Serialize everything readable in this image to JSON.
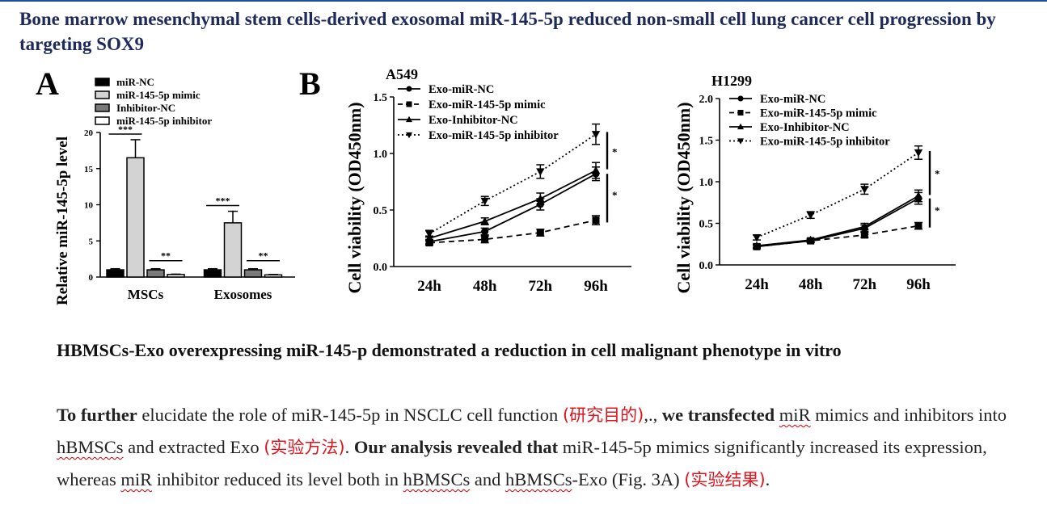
{
  "page": {
    "title": "Bone marrow mesenchymal stem cells-derived exosomal miR-145-5p reduced non-small cell lung cancer cell progression by targeting SOX9",
    "panel_a_letter": "A",
    "panel_b_letter": "B",
    "heading": "HBMSCs-Exo overexpressing miR-145-p demonstrated a reduction in cell malignant phenotype in vitro"
  },
  "paragraph": {
    "s1": "To further",
    "s2": " elucidate the role of miR-145-5p in NSCLC cell function ",
    "s3": "(研究目的)",
    "s4": ",., ",
    "s5": "we transfected",
    "s6": " ",
    "s7": "miR",
    "s8": " mimics and inhibitors into ",
    "s9": "hBMSCs",
    "s10": " and extracted Exo ",
    "s11": "(实验方法)",
    "s12": ". ",
    "s13": "Our analysis revealed that",
    "s14": " miR-145-5p mimics significantly increased its expression, whereas ",
    "s15": "miR",
    "s16": " inhibitor reduced its level both in ",
    "s17": "hBMSCs",
    "s18": " and ",
    "s19": "hBMSCs",
    "s20": "-Exo (Fig. 3A) ",
    "s21": "(实验结果)",
    "s22": "."
  },
  "chart_data": [
    {
      "type": "bar",
      "ylabel": "Relative miR-145-5p level",
      "ylim": [
        0,
        20
      ],
      "yticks": [
        "0",
        "5",
        "10",
        "15",
        "20"
      ],
      "categories": [
        "MSCs",
        "Exosomes"
      ],
      "series": [
        {
          "name": "miR-NC",
          "values": [
            1.0,
            1.0
          ],
          "errors": [
            0.15,
            0.15
          ],
          "fill": "#000000"
        },
        {
          "name": "miR-145-5p mimic",
          "values": [
            16.5,
            7.5
          ],
          "errors": [
            2.5,
            1.6
          ],
          "fill": "#d3d3d3"
        },
        {
          "name": "Inhibitor-NC",
          "values": [
            1.0,
            1.0
          ],
          "errors": [
            0.15,
            0.15
          ],
          "fill": "#7a7a7a"
        },
        {
          "name": "miR-145-5p inhibitor",
          "values": [
            0.35,
            0.3
          ],
          "errors": [
            0.05,
            0.05
          ],
          "fill": "#ffffff"
        }
      ],
      "annotations": [
        "***",
        "**",
        "***",
        "**"
      ],
      "legend": "top"
    },
    {
      "type": "line",
      "title": "A549",
      "ylabel": "Cell viability (OD450nm)",
      "ylim": [
        0,
        1.5
      ],
      "yticks": [
        "0.0",
        "0.5",
        "1.0",
        "1.5"
      ],
      "categories": [
        "24h",
        "48h",
        "72h",
        "96h"
      ],
      "series": [
        {
          "name": "Exo-miR-NC",
          "values": [
            0.22,
            0.31,
            0.55,
            0.82
          ],
          "errors": [
            0.02,
            0.03,
            0.05,
            0.06
          ],
          "marker": "circle",
          "dash": "solid"
        },
        {
          "name": "Exo-miR-145-5p mimic",
          "values": [
            0.21,
            0.24,
            0.3,
            0.41
          ],
          "errors": [
            0.02,
            0.03,
            0.03,
            0.04
          ],
          "marker": "square",
          "dash": "dashed"
        },
        {
          "name": "Exo-Inhibitor-NC",
          "values": [
            0.25,
            0.4,
            0.6,
            0.85
          ],
          "errors": [
            0.02,
            0.03,
            0.05,
            0.07
          ],
          "marker": "triangle",
          "dash": "solid"
        },
        {
          "name": "Exo-miR-145-5p inhibitor",
          "values": [
            0.29,
            0.58,
            0.84,
            1.17
          ],
          "errors": [
            0.03,
            0.04,
            0.06,
            0.09
          ],
          "marker": "triangle-down",
          "dash": "dotted"
        }
      ],
      "annotations": [
        "*",
        "*"
      ]
    },
    {
      "type": "line",
      "title": "H1299",
      "ylabel": "Cell viability (OD450nm)",
      "ylim": [
        0,
        2.0
      ],
      "yticks": [
        "0.0",
        "0.5",
        "1.0",
        "1.5",
        "2.0"
      ],
      "categories": [
        "24h",
        "48h",
        "72h",
        "96h"
      ],
      "series": [
        {
          "name": "Exo-miR-NC",
          "values": [
            0.22,
            0.29,
            0.44,
            0.8
          ],
          "errors": [
            0.02,
            0.02,
            0.04,
            0.07
          ],
          "marker": "circle",
          "dash": "solid"
        },
        {
          "name": "Exo-miR-145-5p mimic",
          "values": [
            0.22,
            0.29,
            0.36,
            0.47
          ],
          "errors": [
            0.02,
            0.02,
            0.03,
            0.04
          ],
          "marker": "square",
          "dash": "dashed"
        },
        {
          "name": "Exo-Inhibitor-NC",
          "values": [
            0.23,
            0.3,
            0.46,
            0.83
          ],
          "errors": [
            0.02,
            0.02,
            0.04,
            0.07
          ],
          "marker": "triangle",
          "dash": "solid"
        },
        {
          "name": "Exo-miR-145-5p inhibitor",
          "values": [
            0.33,
            0.6,
            0.91,
            1.35
          ],
          "errors": [
            0.03,
            0.04,
            0.06,
            0.08
          ],
          "marker": "triangle-down",
          "dash": "dotted"
        }
      ],
      "annotations": [
        "*",
        "*"
      ]
    }
  ]
}
